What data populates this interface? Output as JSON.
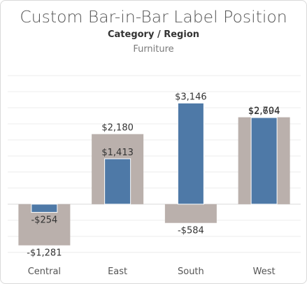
{
  "title": "Custom Bar-in-Bar Label Position",
  "subtitle": "Category / Region",
  "header": "Furniture",
  "colors": {
    "outer_bar": "#bab0ac",
    "inner_bar": "#4e79a7",
    "grid": "#ececec",
    "zero_line": "#e6e6e6",
    "label": "#333333",
    "axis_label": "#555555"
  },
  "chart_data": {
    "type": "bar",
    "subtype": "bar-in-bar",
    "categories": [
      "Central",
      "East",
      "South",
      "West"
    ],
    "series": [
      {
        "role": "outer",
        "values": [
          -1281,
          2180,
          -584,
          2704
        ]
      },
      {
        "role": "inner",
        "values": [
          -254,
          1413,
          3146,
          2694
        ]
      }
    ],
    "labels": {
      "outer": [
        "-$1,281",
        "$2,180",
        "-$584",
        "$2,704"
      ],
      "inner": [
        "-$254",
        "$1,413",
        "$3,146",
        "$2,694"
      ]
    },
    "ylim": [
      -1700,
      4350
    ],
    "grid": true,
    "axes_visible": false
  }
}
